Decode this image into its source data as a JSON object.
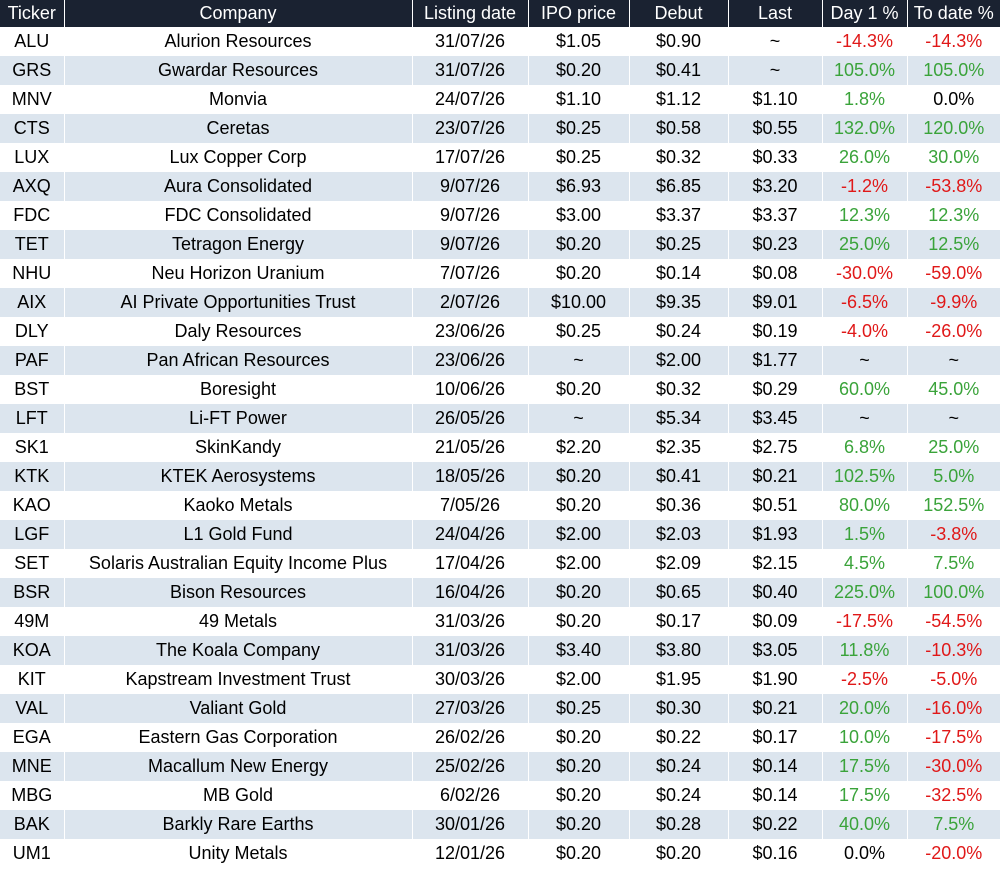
{
  "colors": {
    "header_bg": "#1a2231",
    "header_text": "#ffffff",
    "row_alt": "#dce5ee",
    "positive": "#3aa33a",
    "negative": "#e01818"
  },
  "columns": [
    "Ticker",
    "Company",
    "Listing date",
    "IPO price",
    "Debut",
    "Last",
    "Day 1 %",
    "To date %"
  ],
  "rows": [
    {
      "ticker": "ALU",
      "company": "Alurion Resources",
      "date": "31/07/26",
      "ipo": "$1.05",
      "debut": "$0.90",
      "last": "~",
      "day1": "-14.3%",
      "todate": "-14.3%",
      "day1_tone": "neg",
      "todate_tone": "neg"
    },
    {
      "ticker": "GRS",
      "company": "Gwardar Resources",
      "date": "31/07/26",
      "ipo": "$0.20",
      "debut": "$0.41",
      "last": "~",
      "day1": "105.0%",
      "todate": "105.0%",
      "day1_tone": "pos",
      "todate_tone": "pos"
    },
    {
      "ticker": "MNV",
      "company": "Monvia",
      "date": "24/07/26",
      "ipo": "$1.10",
      "debut": "$1.12",
      "last": "$1.10",
      "day1": "1.8%",
      "todate": "0.0%",
      "day1_tone": "pos",
      "todate_tone": "neu"
    },
    {
      "ticker": "CTS",
      "company": "Ceretas",
      "date": "23/07/26",
      "ipo": "$0.25",
      "debut": "$0.58",
      "last": "$0.55",
      "day1": "132.0%",
      "todate": "120.0%",
      "day1_tone": "pos",
      "todate_tone": "pos"
    },
    {
      "ticker": "LUX",
      "company": "Lux Copper Corp",
      "date": "17/07/26",
      "ipo": "$0.25",
      "debut": "$0.32",
      "last": "$0.33",
      "day1": "26.0%",
      "todate": "30.0%",
      "day1_tone": "pos",
      "todate_tone": "pos"
    },
    {
      "ticker": "AXQ",
      "company": "Aura Consolidated",
      "date": "9/07/26",
      "ipo": "$6.93",
      "debut": "$6.85",
      "last": "$3.20",
      "day1": "-1.2%",
      "todate": "-53.8%",
      "day1_tone": "neg",
      "todate_tone": "neg"
    },
    {
      "ticker": "FDC",
      "company": "FDC Consolidated",
      "date": "9/07/26",
      "ipo": "$3.00",
      "debut": "$3.37",
      "last": "$3.37",
      "day1": "12.3%",
      "todate": "12.3%",
      "day1_tone": "pos",
      "todate_tone": "pos"
    },
    {
      "ticker": "TET",
      "company": "Tetragon Energy",
      "date": "9/07/26",
      "ipo": "$0.20",
      "debut": "$0.25",
      "last": "$0.23",
      "day1": "25.0%",
      "todate": "12.5%",
      "day1_tone": "pos",
      "todate_tone": "pos"
    },
    {
      "ticker": "NHU",
      "company": "Neu Horizon Uranium",
      "date": "7/07/26",
      "ipo": "$0.20",
      "debut": "$0.14",
      "last": "$0.08",
      "day1": "-30.0%",
      "todate": "-59.0%",
      "day1_tone": "neg",
      "todate_tone": "neg"
    },
    {
      "ticker": "AIX",
      "company": "AI Private Opportunities Trust",
      "date": "2/07/26",
      "ipo": "$10.00",
      "debut": "$9.35",
      "last": "$9.01",
      "day1": "-6.5%",
      "todate": "-9.9%",
      "day1_tone": "neg",
      "todate_tone": "neg"
    },
    {
      "ticker": "DLY",
      "company": "Daly Resources",
      "date": "23/06/26",
      "ipo": "$0.25",
      "debut": "$0.24",
      "last": "$0.19",
      "day1": "-4.0%",
      "todate": "-26.0%",
      "day1_tone": "neg",
      "todate_tone": "neg"
    },
    {
      "ticker": "PAF",
      "company": "Pan African Resources",
      "date": "23/06/26",
      "ipo": "~",
      "debut": "$2.00",
      "last": "$1.77",
      "day1": "~",
      "todate": "~",
      "day1_tone": "neu",
      "todate_tone": "neu"
    },
    {
      "ticker": "BST",
      "company": "Boresight",
      "date": "10/06/26",
      "ipo": "$0.20",
      "debut": "$0.32",
      "last": "$0.29",
      "day1": "60.0%",
      "todate": "45.0%",
      "day1_tone": "pos",
      "todate_tone": "pos"
    },
    {
      "ticker": "LFT",
      "company": "Li-FT Power",
      "date": "26/05/26",
      "ipo": "~",
      "debut": "$5.34",
      "last": "$3.45",
      "day1": "~",
      "todate": "~",
      "day1_tone": "neu",
      "todate_tone": "neu"
    },
    {
      "ticker": "SK1",
      "company": "SkinKandy",
      "date": "21/05/26",
      "ipo": "$2.20",
      "debut": "$2.35",
      "last": "$2.75",
      "day1": "6.8%",
      "todate": "25.0%",
      "day1_tone": "pos",
      "todate_tone": "pos"
    },
    {
      "ticker": "KTK",
      "company": "KTEK Aerosystems",
      "date": "18/05/26",
      "ipo": "$0.20",
      "debut": "$0.41",
      "last": "$0.21",
      "day1": "102.5%",
      "todate": "5.0%",
      "day1_tone": "pos",
      "todate_tone": "pos"
    },
    {
      "ticker": "KAO",
      "company": "Kaoko Metals",
      "date": "7/05/26",
      "ipo": "$0.20",
      "debut": "$0.36",
      "last": "$0.51",
      "day1": "80.0%",
      "todate": "152.5%",
      "day1_tone": "pos",
      "todate_tone": "pos"
    },
    {
      "ticker": "LGF",
      "company": "L1 Gold Fund",
      "date": "24/04/26",
      "ipo": "$2.00",
      "debut": "$2.03",
      "last": "$1.93",
      "day1": "1.5%",
      "todate": "-3.8%",
      "day1_tone": "pos",
      "todate_tone": "neg"
    },
    {
      "ticker": "SET",
      "company": "Solaris Australian Equity Income Plus",
      "date": "17/04/26",
      "ipo": "$2.00",
      "debut": "$2.09",
      "last": "$2.15",
      "day1": "4.5%",
      "todate": "7.5%",
      "day1_tone": "pos",
      "todate_tone": "pos"
    },
    {
      "ticker": "BSR",
      "company": "Bison Resources",
      "date": "16/04/26",
      "ipo": "$0.20",
      "debut": "$0.65",
      "last": "$0.40",
      "day1": "225.0%",
      "todate": "100.0%",
      "day1_tone": "pos",
      "todate_tone": "pos"
    },
    {
      "ticker": "49M",
      "company": "49 Metals",
      "date": "31/03/26",
      "ipo": "$0.20",
      "debut": "$0.17",
      "last": "$0.09",
      "day1": "-17.5%",
      "todate": "-54.5%",
      "day1_tone": "neg",
      "todate_tone": "neg"
    },
    {
      "ticker": "KOA",
      "company": "The Koala Company",
      "date": "31/03/26",
      "ipo": "$3.40",
      "debut": "$3.80",
      "last": "$3.05",
      "day1": "11.8%",
      "todate": "-10.3%",
      "day1_tone": "pos",
      "todate_tone": "neg"
    },
    {
      "ticker": "KIT",
      "company": "Kapstream Investment Trust",
      "date": "30/03/26",
      "ipo": "$2.00",
      "debut": "$1.95",
      "last": "$1.90",
      "day1": "-2.5%",
      "todate": "-5.0%",
      "day1_tone": "neg",
      "todate_tone": "neg"
    },
    {
      "ticker": "VAL",
      "company": "Valiant Gold",
      "date": "27/03/26",
      "ipo": "$0.25",
      "debut": "$0.30",
      "last": "$0.21",
      "day1": "20.0%",
      "todate": "-16.0%",
      "day1_tone": "pos",
      "todate_tone": "neg"
    },
    {
      "ticker": "EGA",
      "company": "Eastern Gas Corporation",
      "date": "26/02/26",
      "ipo": "$0.20",
      "debut": "$0.22",
      "last": "$0.17",
      "day1": "10.0%",
      "todate": "-17.5%",
      "day1_tone": "pos",
      "todate_tone": "neg"
    },
    {
      "ticker": "MNE",
      "company": "Macallum New Energy",
      "date": "25/02/26",
      "ipo": "$0.20",
      "debut": "$0.24",
      "last": "$0.14",
      "day1": "17.5%",
      "todate": "-30.0%",
      "day1_tone": "pos",
      "todate_tone": "neg"
    },
    {
      "ticker": "MBG",
      "company": "MB Gold",
      "date": "6/02/26",
      "ipo": "$0.20",
      "debut": "$0.24",
      "last": "$0.14",
      "day1": "17.5%",
      "todate": "-32.5%",
      "day1_tone": "pos",
      "todate_tone": "neg"
    },
    {
      "ticker": "BAK",
      "company": "Barkly Rare Earths",
      "date": "30/01/26",
      "ipo": "$0.20",
      "debut": "$0.28",
      "last": "$0.22",
      "day1": "40.0%",
      "todate": "7.5%",
      "day1_tone": "pos",
      "todate_tone": "pos"
    },
    {
      "ticker": "UM1",
      "company": "Unity Metals",
      "date": "12/01/26",
      "ipo": "$0.20",
      "debut": "$0.20",
      "last": "$0.16",
      "day1": "0.0%",
      "todate": "-20.0%",
      "day1_tone": "neu",
      "todate_tone": "neg"
    }
  ]
}
